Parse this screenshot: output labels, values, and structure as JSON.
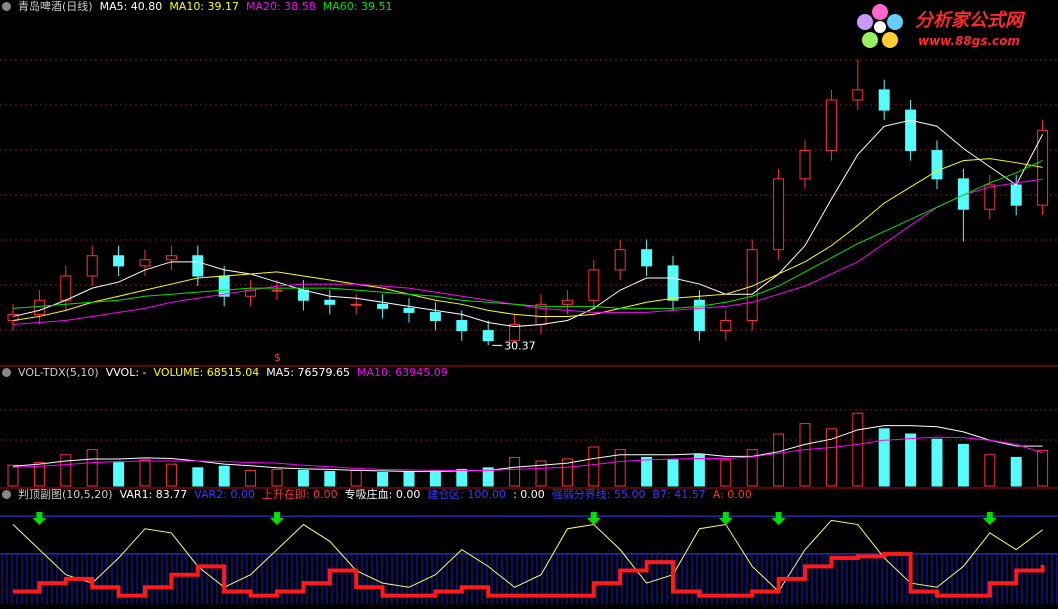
{
  "chart_data": [
    {
      "type": "candlestick",
      "title": "青岛啤酒(日线)",
      "up_color": "#ff3232",
      "down_color": "#54fcfc",
      "ylim": [
        29.4,
        46.7
      ],
      "legend": [
        {
          "label": "MA5: 40.80",
          "color": "#ffffff"
        },
        {
          "label": "MA10: 39.17",
          "color": "#ffff00"
        },
        {
          "label": "MA20: 38.58",
          "color": "#ff00ff"
        },
        {
          "label": "MA60: 39.51",
          "color": "#00e600"
        }
      ],
      "open": [
        31.6,
        31.9,
        32.6,
        33.8,
        34.8,
        34.3,
        34.6,
        34.8,
        33.8,
        32.8,
        33.1,
        33.1,
        32.6,
        32.4,
        32.4,
        32.2,
        32.0,
        31.6,
        31.1,
        30.6,
        31.4,
        32.4,
        32.6,
        34.1,
        35.1,
        34.3,
        32.6,
        31.1,
        31.6,
        35.1,
        38.6,
        40.0,
        42.5,
        43.0,
        42.0,
        40.0,
        38.6,
        37.1,
        38.3,
        37.3
      ],
      "high": [
        32.4,
        33.1,
        34.3,
        35.3,
        35.3,
        35.1,
        35.3,
        35.3,
        34.3,
        33.6,
        33.6,
        33.6,
        33.1,
        32.9,
        32.9,
        32.7,
        32.5,
        32.1,
        31.6,
        31.9,
        32.9,
        33.1,
        34.6,
        35.6,
        35.6,
        34.8,
        33.1,
        32.1,
        35.6,
        39.1,
        40.5,
        43.0,
        44.5,
        43.5,
        42.5,
        40.5,
        39.1,
        38.8,
        38.8,
        41.5
      ],
      "low": [
        31.1,
        31.4,
        32.1,
        33.3,
        33.8,
        33.8,
        34.1,
        33.3,
        32.3,
        32.3,
        32.6,
        32.1,
        31.9,
        31.9,
        31.7,
        31.5,
        31.1,
        30.6,
        30.37,
        30.5,
        30.9,
        31.9,
        32.1,
        33.6,
        33.8,
        32.1,
        30.6,
        30.6,
        31.1,
        34.6,
        38.1,
        39.5,
        42.0,
        41.5,
        39.5,
        38.1,
        35.5,
        36.6,
        36.8,
        36.8
      ],
      "close": [
        31.9,
        32.6,
        33.8,
        34.8,
        34.3,
        34.6,
        34.8,
        33.8,
        32.8,
        33.1,
        33.1,
        32.6,
        32.4,
        32.4,
        32.2,
        32.0,
        31.6,
        31.1,
        30.6,
        31.4,
        32.4,
        32.6,
        34.1,
        35.1,
        34.3,
        32.6,
        31.1,
        31.6,
        35.1,
        38.6,
        40.0,
        42.5,
        43.0,
        42.0,
        40.0,
        38.6,
        37.1,
        38.3,
        37.3,
        41.0
      ],
      "series": [
        {
          "color": "#ffffff",
          "values": [
            31.8,
            32.1,
            32.6,
            33.2,
            33.5,
            34.1,
            34.5,
            34.5,
            34.1,
            33.9,
            33.5,
            33.1,
            32.8,
            32.7,
            32.5,
            32.3,
            32.1,
            31.9,
            31.5,
            31.3,
            31.4,
            31.6,
            32.2,
            33.1,
            33.7,
            33.7,
            33.4,
            32.9,
            32.9,
            33.9,
            35.3,
            37.6,
            39.8,
            41.2,
            41.5,
            41.2,
            40.1,
            39.2,
            38.3,
            40.8
          ]
        },
        {
          "color": "#ffff00",
          "values": [
            31.6,
            31.8,
            32.1,
            32.5,
            32.8,
            33.1,
            33.4,
            33.7,
            33.8,
            33.9,
            34.0,
            33.8,
            33.6,
            33.4,
            33.2,
            32.9,
            32.6,
            32.4,
            32.1,
            31.9,
            31.8,
            31.8,
            31.9,
            32.2,
            32.5,
            32.7,
            32.8,
            32.9,
            33.3,
            33.9,
            34.5,
            35.3,
            36.3,
            37.4,
            38.2,
            39.0,
            39.5,
            39.6,
            39.4,
            39.17
          ]
        },
        {
          "color": "#ff00ff",
          "values": [
            31.4,
            31.5,
            31.6,
            31.8,
            32.0,
            32.2,
            32.5,
            32.7,
            32.9,
            33.1,
            33.3,
            33.4,
            33.4,
            33.4,
            33.3,
            33.2,
            33.0,
            32.8,
            32.6,
            32.4,
            32.2,
            32.1,
            32.0,
            32.0,
            32.0,
            32.1,
            32.2,
            32.3,
            32.5,
            32.9,
            33.3,
            33.9,
            34.5,
            35.4,
            36.3,
            37.2,
            37.8,
            38.2,
            38.4,
            38.58
          ]
        },
        {
          "color": "#00e600",
          "values": [
            32.2,
            32.3,
            32.4,
            32.5,
            32.6,
            32.8,
            32.9,
            33.0,
            33.1,
            33.2,
            33.2,
            33.2,
            33.2,
            33.1,
            33.0,
            32.9,
            32.8,
            32.6,
            32.5,
            32.4,
            32.3,
            32.3,
            32.3,
            32.2,
            32.2,
            32.2,
            32.3,
            32.5,
            32.8,
            33.3,
            34.0,
            34.7,
            35.4,
            36.0,
            36.6,
            37.2,
            37.8,
            38.4,
            38.9,
            39.51
          ]
        }
      ],
      "annotations": [
        {
          "text": "30.37",
          "index": 18,
          "color": "#ffffff"
        },
        {
          "text": "$",
          "index": 10,
          "color": "#ff3232"
        }
      ]
    },
    {
      "type": "bar",
      "title": "VOL-TDX(5,10)",
      "ylim": [
        0,
        200000
      ],
      "legend": [
        {
          "label": "VVOL: -",
          "color": "#ffffff"
        },
        {
          "label": "VOLUME: 68515.04",
          "color": "#ffff00"
        },
        {
          "label": "MA5: 76579.65",
          "color": "#ffffff"
        },
        {
          "label": "MA10: 63945.09",
          "color": "#ff00ff"
        }
      ],
      "values": [
        40000,
        45000,
        60000,
        70000,
        45000,
        50000,
        42000,
        35000,
        38000,
        30000,
        32000,
        30000,
        28000,
        30000,
        26000,
        28000,
        30000,
        32000,
        35000,
        55000,
        48000,
        52000,
        75000,
        70000,
        55000,
        50000,
        60000,
        50000,
        70000,
        100000,
        120000,
        110000,
        140000,
        110000,
        100000,
        90000,
        80000,
        60000,
        55000,
        68515.04
      ],
      "series": [
        {
          "color": "#ffffff",
          "values": [
            38000,
            42000,
            48000,
            52000,
            52000,
            54000,
            53000,
            48000,
            42000,
            39000,
            35000,
            33000,
            32000,
            30000,
            29000,
            28000,
            28000,
            29000,
            30000,
            36000,
            40000,
            44000,
            53000,
            60000,
            60000,
            60000,
            62000,
            57000,
            57000,
            66000,
            80000,
            90000,
            108000,
            116000,
            116000,
            114000,
            104000,
            88000,
            77000,
            76579.65
          ]
        },
        {
          "color": "#ff00ff",
          "values": [
            36000,
            38000,
            41000,
            45000,
            47000,
            48000,
            48000,
            48000,
            47000,
            45000,
            44000,
            40000,
            37000,
            34000,
            32000,
            31000,
            30000,
            30000,
            30000,
            32000,
            34000,
            36000,
            41000,
            47000,
            50000,
            52000,
            53000,
            53000,
            56000,
            63000,
            70000,
            74000,
            80000,
            88000,
            91000,
            94000,
            93000,
            88000,
            80000,
            63945.09
          ]
        }
      ]
    },
    {
      "type": "indicator",
      "title": "判顶副图(10,5,20)",
      "ylim": [
        -5,
        105
      ],
      "legend": [
        {
          "label": "VAR1: 83.77",
          "color": "#ffffff"
        },
        {
          "label": "VAR2: 0.00",
          "color": "#3a3aff"
        },
        {
          "label": "上升在即: 0.00",
          "color": "#ff3232"
        },
        {
          "label": "专吸庄血: 0.00",
          "color": "#ffffff"
        },
        {
          "label": "建仓区: 100.00",
          "color": "#3a3aff",
          "value": 100
        },
        {
          "label": ": 0.00",
          "color": "#ffffff"
        },
        {
          "label": "强弱分界线: 55.00",
          "color": "#3a3aff",
          "value": 55
        },
        {
          "label": "B7: 41.57",
          "color": "#3a3aff"
        },
        {
          "label": "A: 0.00",
          "color": "#ff3232"
        }
      ],
      "series": [
        {
          "color": "#ffff66",
          "style": "line",
          "values": [
            90,
            60,
            30,
            20,
            50,
            85,
            80,
            40,
            15,
            30,
            60,
            90,
            70,
            35,
            20,
            15,
            30,
            60,
            40,
            15,
            30,
            85,
            90,
            60,
            20,
            30,
            85,
            90,
            40,
            10,
            60,
            95,
            90,
            50,
            20,
            15,
            40,
            80,
            60,
            83.77
          ]
        },
        {
          "color": "#ff1a1a",
          "style": "step",
          "values": [
            10,
            20,
            25,
            15,
            5,
            15,
            30,
            40,
            10,
            5,
            10,
            20,
            35,
            15,
            5,
            5,
            10,
            15,
            5,
            5,
            5,
            5,
            20,
            35,
            45,
            10,
            5,
            5,
            10,
            25,
            40,
            50,
            52,
            55,
            10,
            5,
            5,
            20,
            35,
            41.57
          ]
        }
      ],
      "signals": [
        1,
        10,
        22,
        27,
        29,
        37
      ],
      "signal_color": "#00dd00"
    }
  ],
  "logo": {
    "title": "分析家公式网",
    "url": "www.88gs.com"
  }
}
